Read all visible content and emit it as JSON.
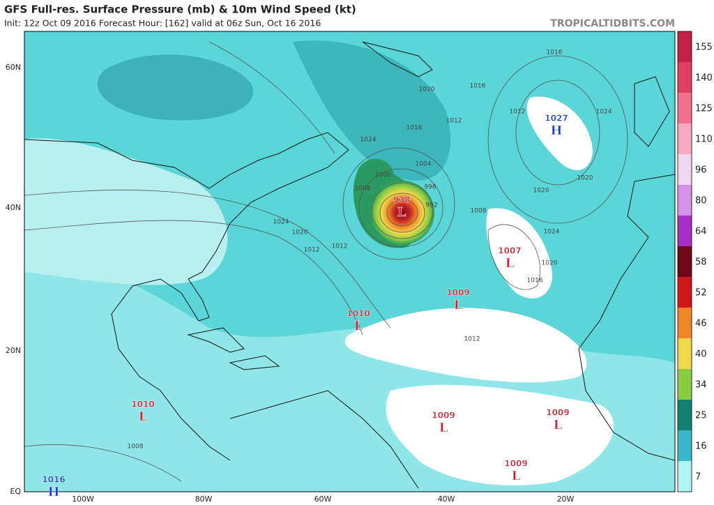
{
  "header": {
    "title": "GFS Full-res. Surface Pressure (mb) & 10m Wind Speed (kt)",
    "subtitle": "Init: 12z Oct 09 2016   Forecast Hour: [162]   valid at 06z Sun, Oct 16 2016",
    "site": "TROPICALTIDBITS.COM"
  },
  "map": {
    "lat_labels": [
      "60N",
      "40N",
      "20N",
      "EQ"
    ],
    "lon_labels": [
      "100W",
      "80W",
      "60W",
      "40W",
      "20W"
    ],
    "centers": [
      {
        "value": 1027,
        "letter": "H"
      },
      {
        "value": 938,
        "letter": "L"
      },
      {
        "value": 1007,
        "letter": "L"
      },
      {
        "value": 1009,
        "letter": "L"
      },
      {
        "value": 1010,
        "letter": "L"
      },
      {
        "value": 1010,
        "letter": "L"
      },
      {
        "value": 1009,
        "letter": "L"
      },
      {
        "value": 1009,
        "letter": "L"
      },
      {
        "value": 1009,
        "letter": "L"
      },
      {
        "value": 1016,
        "letter": "H"
      }
    ],
    "isobar_labels": [
      1020,
      1016,
      1012,
      1016,
      1024,
      1004,
      1000,
      996,
      992,
      1008,
      1008,
      1024,
      1020,
      1016,
      1012,
      1024,
      1020,
      1020,
      1024,
      1020,
      1016,
      1012,
      1008,
      1012,
      1012
    ]
  },
  "colorbar": {
    "ticks": [
      155,
      140,
      125,
      110,
      96,
      80,
      64,
      58,
      52,
      46,
      40,
      34,
      25,
      16,
      7
    ],
    "colors": [
      "#c0204a",
      "#e04060",
      "#f07090",
      "#f8a8c0",
      "#f0d8f0",
      "#d890e8",
      "#a830c8",
      "#700818",
      "#d01818",
      "#f08828",
      "#f0d848",
      "#88cc44",
      "#148070",
      "#38b8c8",
      "#b0f4f4"
    ]
  }
}
